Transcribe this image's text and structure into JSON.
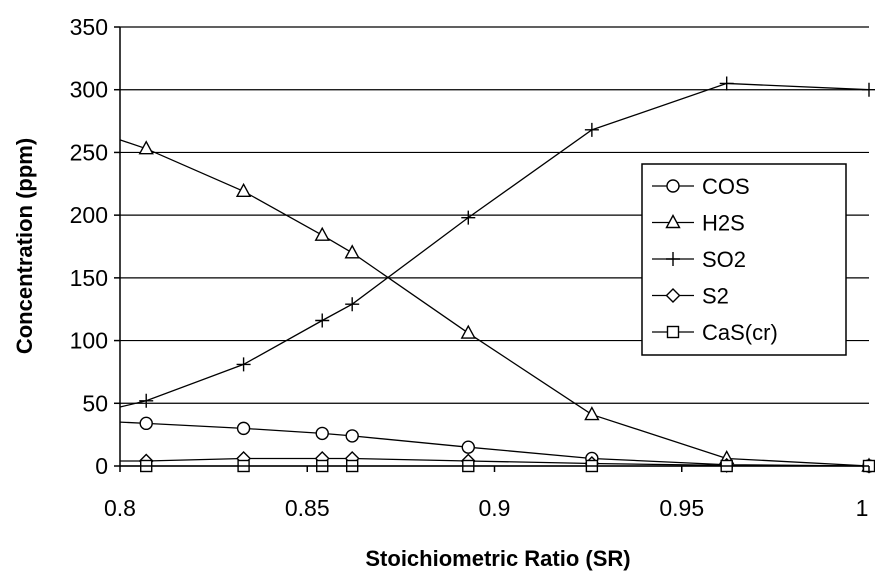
{
  "chart_data": {
    "type": "line",
    "title": "",
    "xlabel": "Stoichiometric Ratio (SR)",
    "ylabel": "Concentration (ppm)",
    "xlim": [
      0.8,
      1.0
    ],
    "ylim": [
      0,
      350
    ],
    "xticks": [
      "0.8",
      "0.85",
      "0.9",
      "0.95",
      "1"
    ],
    "yticks": [
      "0",
      "50",
      "100",
      "150",
      "200",
      "250",
      "300",
      "350"
    ],
    "grid": "horizontal",
    "legend_position": "right",
    "series": [
      {
        "name": "COS",
        "marker": "circle",
        "line": [
          [
            0.8,
            35
          ],
          [
            0.807,
            34
          ],
          [
            0.833,
            30
          ],
          [
            0.854,
            26
          ],
          [
            0.862,
            24
          ],
          [
            0.893,
            15
          ],
          [
            0.926,
            6
          ],
          [
            0.962,
            1
          ],
          [
            1.0,
            0
          ]
        ],
        "points": [
          [
            0.807,
            34
          ],
          [
            0.833,
            30
          ],
          [
            0.854,
            26
          ],
          [
            0.862,
            24
          ],
          [
            0.893,
            15
          ],
          [
            0.926,
            6
          ],
          [
            0.962,
            1
          ],
          [
            1.0,
            0
          ]
        ]
      },
      {
        "name": "H2S",
        "marker": "triangle",
        "line": [
          [
            0.8,
            260
          ],
          [
            0.807,
            253
          ],
          [
            0.833,
            219
          ],
          [
            0.854,
            184
          ],
          [
            0.862,
            170
          ],
          [
            0.893,
            106
          ],
          [
            0.926,
            41
          ],
          [
            0.962,
            6
          ],
          [
            1.0,
            0
          ]
        ],
        "points": [
          [
            0.807,
            253
          ],
          [
            0.833,
            219
          ],
          [
            0.854,
            184
          ],
          [
            0.862,
            170
          ],
          [
            0.893,
            106
          ],
          [
            0.926,
            41
          ],
          [
            0.962,
            6
          ],
          [
            1.0,
            0
          ]
        ]
      },
      {
        "name": "SO2",
        "marker": "plus",
        "line": [
          [
            0.8,
            47
          ],
          [
            0.807,
            52
          ],
          [
            0.833,
            81
          ],
          [
            0.854,
            116
          ],
          [
            0.862,
            129
          ],
          [
            0.893,
            198
          ],
          [
            0.926,
            268
          ],
          [
            0.962,
            305
          ],
          [
            1.0,
            300
          ]
        ],
        "points": [
          [
            0.807,
            52
          ],
          [
            0.833,
            81
          ],
          [
            0.854,
            116
          ],
          [
            0.862,
            129
          ],
          [
            0.893,
            198
          ],
          [
            0.926,
            268
          ],
          [
            0.962,
            305
          ],
          [
            1.0,
            300
          ]
        ]
      },
      {
        "name": "S2",
        "marker": "diamond",
        "line": [
          [
            0.8,
            4
          ],
          [
            0.807,
            4
          ],
          [
            0.833,
            6
          ],
          [
            0.854,
            6
          ],
          [
            0.862,
            6
          ],
          [
            0.893,
            4
          ],
          [
            0.926,
            2
          ],
          [
            0.962,
            0.5
          ],
          [
            1.0,
            0
          ]
        ],
        "points": [
          [
            0.807,
            4
          ],
          [
            0.833,
            6
          ],
          [
            0.854,
            6
          ],
          [
            0.862,
            6
          ],
          [
            0.893,
            4
          ],
          [
            0.926,
            2
          ],
          [
            0.962,
            0.5
          ],
          [
            1.0,
            0
          ]
        ]
      },
      {
        "name": "CaS(cr)",
        "marker": "square",
        "line": [
          [
            0.8,
            0
          ],
          [
            1.0,
            0
          ]
        ],
        "points": [
          [
            0.807,
            0
          ],
          [
            0.833,
            0
          ],
          [
            0.854,
            0
          ],
          [
            0.862,
            0
          ],
          [
            0.893,
            0
          ],
          [
            0.926,
            0
          ],
          [
            0.962,
            0
          ],
          [
            1.0,
            0
          ]
        ]
      }
    ]
  }
}
